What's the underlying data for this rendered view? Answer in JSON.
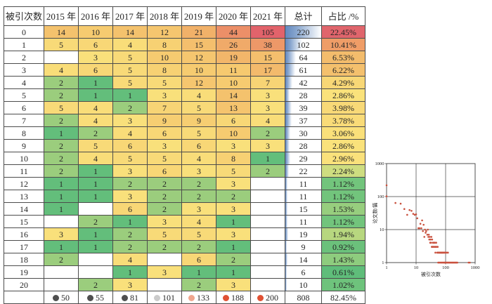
{
  "table": {
    "header": [
      "被引次数",
      "2015 年",
      "2016 年",
      "2017 年",
      "2018 年",
      "2019 年",
      "2020 年",
      "2021 年",
      "总计",
      "占比 /%"
    ],
    "rows": [
      {
        "label": "0",
        "cells": [
          14,
          10,
          14,
          12,
          21,
          44,
          105
        ],
        "total": 220,
        "pct": "22.45%"
      },
      {
        "label": "1",
        "cells": [
          5,
          6,
          4,
          8,
          15,
          26,
          38
        ],
        "total": 102,
        "pct": "10.41%"
      },
      {
        "label": "2",
        "cells": [
          null,
          3,
          5,
          10,
          12,
          19,
          15
        ],
        "total": 64,
        "pct": "6.53%"
      },
      {
        "label": "3",
        "cells": [
          4,
          6,
          5,
          8,
          10,
          11,
          17
        ],
        "total": 61,
        "pct": "6.22%"
      },
      {
        "label": "4",
        "cells": [
          2,
          1,
          5,
          5,
          12,
          10,
          7
        ],
        "total": 42,
        "pct": "4.29%"
      },
      {
        "label": "5",
        "cells": [
          2,
          1,
          1,
          3,
          4,
          14,
          3
        ],
        "total": 28,
        "pct": "2.86%"
      },
      {
        "label": "6",
        "cells": [
          5,
          4,
          2,
          7,
          5,
          13,
          3
        ],
        "total": 39,
        "pct": "3.98%"
      },
      {
        "label": "7",
        "cells": [
          2,
          4,
          3,
          9,
          9,
          6,
          4
        ],
        "total": 37,
        "pct": "3.78%"
      },
      {
        "label": "8",
        "cells": [
          1,
          2,
          4,
          6,
          5,
          10,
          2
        ],
        "total": 30,
        "pct": "3.06%"
      },
      {
        "label": "9",
        "cells": [
          2,
          5,
          6,
          3,
          6,
          3,
          3
        ],
        "total": 28,
        "pct": "2.86%"
      },
      {
        "label": "10",
        "cells": [
          2,
          4,
          5,
          5,
          4,
          8,
          1
        ],
        "total": 29,
        "pct": "2.96%"
      },
      {
        "label": "11",
        "cells": [
          2,
          1,
          3,
          6,
          3,
          5,
          2
        ],
        "total": 22,
        "pct": "2.24%"
      },
      {
        "label": "12",
        "cells": [
          1,
          1,
          2,
          2,
          2,
          3,
          null
        ],
        "total": 11,
        "pct": "1.12%"
      },
      {
        "label": "13",
        "cells": [
          1,
          1,
          3,
          2,
          2,
          2,
          null
        ],
        "total": 11,
        "pct": "1.12%"
      },
      {
        "label": "14",
        "cells": [
          1,
          null,
          6,
          2,
          3,
          3,
          null
        ],
        "total": 15,
        "pct": "1.53%"
      },
      {
        "label": "15",
        "cells": [
          null,
          2,
          1,
          3,
          4,
          1,
          null
        ],
        "total": 11,
        "pct": "1.12%"
      },
      {
        "label": "16",
        "cells": [
          3,
          1,
          2,
          5,
          5,
          3,
          null
        ],
        "total": 19,
        "pct": "1.94%"
      },
      {
        "label": "17",
        "cells": [
          1,
          1,
          2,
          2,
          2,
          1,
          null
        ],
        "total": 9,
        "pct": "0.92%"
      },
      {
        "label": "18",
        "cells": [
          2,
          null,
          4,
          null,
          6,
          2,
          null
        ],
        "total": 14,
        "pct": "1.43%"
      },
      {
        "label": "19",
        "cells": [
          null,
          null,
          1,
          3,
          1,
          1,
          null
        ],
        "total": 6,
        "pct": "0.61%"
      },
      {
        "label": "20",
        "cells": [
          null,
          2,
          3,
          null,
          2,
          3,
          null
        ],
        "total": 10,
        "pct": "1.02%"
      }
    ],
    "footer": {
      "label": "",
      "values": [
        50,
        55,
        81,
        101,
        133,
        188,
        200
      ],
      "icons": [
        "black",
        "black",
        "black",
        "gray",
        "pink",
        "red",
        "red"
      ],
      "total": 808,
      "pct": "82.45%"
    },
    "total_bar_max": 220,
    "colors": {
      "bar_blue": "#6288BE",
      "icon_black": "#4F4F4F",
      "icon_gray": "#CBCBCB",
      "icon_pink": "#F0A68E",
      "icon_red": "#E05134",
      "heat_year_anchors": [
        [
          1,
          "#63BE7B"
        ],
        [
          2,
          "#9BCD7D"
        ],
        [
          3,
          "#F9E07B"
        ],
        [
          10,
          "#F6CB70"
        ],
        [
          21,
          "#F1B169"
        ],
        [
          44,
          "#EC8F68"
        ],
        [
          105,
          "#E2636B"
        ]
      ],
      "heat_pct_anchors": [
        [
          0.61,
          "#5FBD7A"
        ],
        [
          1.12,
          "#72C47C"
        ],
        [
          1.53,
          "#97CE7E"
        ],
        [
          2.24,
          "#CEDD80"
        ],
        [
          2.86,
          "#FAE27B"
        ],
        [
          4.29,
          "#F8D776"
        ],
        [
          6.53,
          "#F3BC6C"
        ],
        [
          10.41,
          "#EF9D67"
        ],
        [
          22.45,
          "#E0656C"
        ]
      ]
    }
  },
  "chart_data": {
    "type": "scatter",
    "title": "",
    "xlabel": "被引次数",
    "ylabel": "论文数/篇",
    "xscale": "log",
    "yscale": "log",
    "xlim": [
      1,
      1000
    ],
    "ylim": [
      1,
      1000
    ],
    "x_ticks": [
      "1",
      "10",
      "100",
      "1000"
    ],
    "y_ticks": [
      "1",
      "10",
      "100",
      "1000"
    ],
    "grid": "on",
    "point_color": "#C9513E",
    "points": [
      [
        1,
        220
      ],
      [
        1,
        102
      ],
      [
        2,
        64
      ],
      [
        3,
        61
      ],
      [
        4,
        42
      ],
      [
        5,
        28
      ],
      [
        6,
        39
      ],
      [
        7,
        37
      ],
      [
        8,
        30
      ],
      [
        9,
        28
      ],
      [
        10,
        29
      ],
      [
        11,
        22
      ],
      [
        12,
        11
      ],
      [
        13,
        11
      ],
      [
        14,
        15
      ],
      [
        15,
        11
      ],
      [
        16,
        19
      ],
      [
        17,
        9
      ],
      [
        18,
        14
      ],
      [
        19,
        6
      ],
      [
        20,
        10
      ],
      [
        21,
        8
      ],
      [
        22,
        9
      ],
      [
        24,
        7
      ],
      [
        25,
        10
      ],
      [
        26,
        6
      ],
      [
        27,
        7
      ],
      [
        28,
        5
      ],
      [
        29,
        6
      ],
      [
        30,
        4
      ],
      [
        31,
        5
      ],
      [
        32,
        4
      ],
      [
        33,
        6
      ],
      [
        34,
        3
      ],
      [
        35,
        5
      ],
      [
        36,
        3
      ],
      [
        37,
        4
      ],
      [
        38,
        3
      ],
      [
        40,
        4
      ],
      [
        41,
        3
      ],
      [
        43,
        4
      ],
      [
        44,
        3
      ],
      [
        45,
        2
      ],
      [
        46,
        3
      ],
      [
        48,
        4
      ],
      [
        50,
        3
      ],
      [
        52,
        2
      ],
      [
        54,
        3
      ],
      [
        55,
        2
      ],
      [
        57,
        2
      ],
      [
        60,
        2
      ],
      [
        62,
        2
      ],
      [
        64,
        2
      ],
      [
        66,
        2
      ],
      [
        68,
        2
      ],
      [
        70,
        2
      ],
      [
        72,
        2
      ],
      [
        74,
        2
      ],
      [
        76,
        2
      ],
      [
        78,
        2
      ],
      [
        80,
        2
      ],
      [
        83,
        2
      ],
      [
        86,
        2
      ],
      [
        90,
        2
      ],
      [
        95,
        2
      ],
      [
        100,
        2
      ],
      [
        110,
        2
      ],
      [
        120,
        2
      ],
      [
        56,
        1
      ],
      [
        59,
        1
      ],
      [
        63,
        1
      ],
      [
        67,
        1
      ],
      [
        71,
        1
      ],
      [
        75,
        1
      ],
      [
        79,
        1
      ],
      [
        84,
        1
      ],
      [
        88,
        1
      ],
      [
        92,
        1
      ],
      [
        96,
        1
      ],
      [
        100,
        1
      ],
      [
        105,
        1
      ],
      [
        110,
        1
      ],
      [
        115,
        1
      ],
      [
        120,
        1
      ],
      [
        126,
        1
      ],
      [
        132,
        1
      ],
      [
        138,
        1
      ],
      [
        145,
        1
      ],
      [
        152,
        1
      ],
      [
        160,
        1
      ],
      [
        168,
        1
      ],
      [
        176,
        1
      ],
      [
        185,
        1
      ],
      [
        195,
        1
      ],
      [
        205,
        1
      ],
      [
        215,
        1
      ],
      [
        226,
        1
      ],
      [
        238,
        1
      ],
      [
        250,
        1
      ],
      [
        600,
        1
      ],
      [
        660,
        1
      ]
    ]
  }
}
